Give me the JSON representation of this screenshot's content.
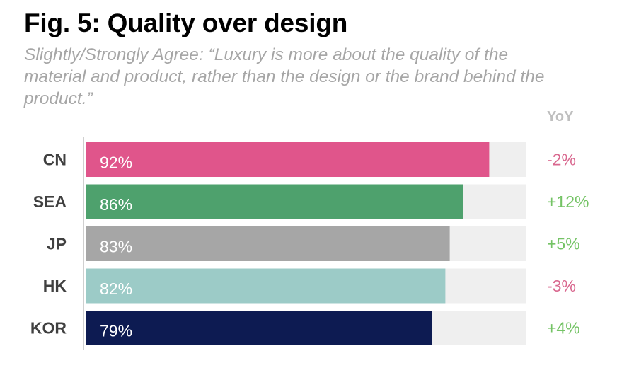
{
  "title": "Fig. 5: Quality over design",
  "subtitle": "Slightly/Strongly Agree: “Luxury is more about the quality of the material and product, rather than the design or the brand behind the product.”",
  "yoy_header": "YoY",
  "chart_data": {
    "type": "bar",
    "orientation": "horizontal",
    "categories": [
      "CN",
      "SEA",
      "JP",
      "HK",
      "KOR"
    ],
    "values": [
      92,
      86,
      83,
      82,
      79
    ],
    "value_labels": [
      "92%",
      "86%",
      "83%",
      "82%",
      "79%"
    ],
    "xlim": [
      0,
      100
    ],
    "bar_colors": [
      "#e0558b",
      "#4ea16d",
      "#a6a6a6",
      "#9ccbc7",
      "#0d1b52"
    ],
    "track_color": "#efefef",
    "yoy": [
      "-2%",
      "+12%",
      "+5%",
      "-3%",
      "+4%"
    ],
    "yoy_colors": [
      "#d9688f",
      "#74c365",
      "#74c365",
      "#d9688f",
      "#74c365"
    ]
  }
}
